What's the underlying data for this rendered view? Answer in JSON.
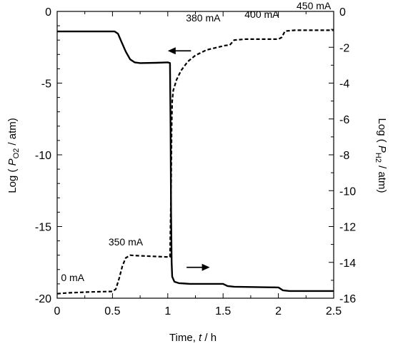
{
  "chart_data": {
    "type": "line",
    "xlabel": "Time, t / h",
    "ylabel_left": "Log ( P O2 / atm)",
    "ylabel_right": "Log ( P H2 / atm)",
    "xlim": [
      0,
      2.5
    ],
    "ylim_left": [
      -20,
      0
    ],
    "ylim_right": [
      -16,
      0
    ],
    "x_ticks": [
      "0",
      "0.5",
      "1",
      "1.5",
      "2",
      "2.5"
    ],
    "y_left_ticks": [
      "0",
      "-5",
      "-10",
      "-15",
      "-20"
    ],
    "y_right_ticks": [
      "0",
      "-2",
      "-4",
      "-6",
      "-8",
      "-10",
      "-12",
      "-14",
      "-16"
    ],
    "grid": false,
    "series": [
      {
        "axis": "left",
        "style": "solid",
        "points": [
          [
            0.0,
            -1.4
          ],
          [
            0.52,
            -1.4
          ],
          [
            0.55,
            -1.55
          ],
          [
            0.58,
            -2.1
          ],
          [
            0.62,
            -2.8
          ],
          [
            0.66,
            -3.35
          ],
          [
            0.7,
            -3.55
          ],
          [
            0.75,
            -3.6
          ],
          [
            0.9,
            -3.58
          ],
          [
            1.0,
            -3.55
          ],
          [
            1.02,
            -3.6
          ],
          [
            1.025,
            -8.0
          ],
          [
            1.03,
            -14.0
          ],
          [
            1.035,
            -17.5
          ],
          [
            1.04,
            -18.5
          ],
          [
            1.06,
            -18.85
          ],
          [
            1.1,
            -18.95
          ],
          [
            1.2,
            -19.0
          ],
          [
            1.5,
            -19.0
          ],
          [
            1.54,
            -19.15
          ],
          [
            1.6,
            -19.2
          ],
          [
            2.0,
            -19.25
          ],
          [
            2.04,
            -19.45
          ],
          [
            2.1,
            -19.5
          ],
          [
            2.5,
            -19.5
          ]
        ]
      },
      {
        "axis": "right",
        "style": "dashed",
        "points": [
          [
            0.0,
            -15.75
          ],
          [
            0.1,
            -15.7
          ],
          [
            0.3,
            -15.65
          ],
          [
            0.5,
            -15.62
          ],
          [
            0.53,
            -15.5
          ],
          [
            0.56,
            -14.9
          ],
          [
            0.59,
            -14.2
          ],
          [
            0.62,
            -13.75
          ],
          [
            0.66,
            -13.6
          ],
          [
            0.7,
            -13.62
          ],
          [
            1.0,
            -13.7
          ],
          [
            1.02,
            -13.7
          ],
          [
            1.03,
            -10.0
          ],
          [
            1.035,
            -6.5
          ],
          [
            1.04,
            -5.0
          ],
          [
            1.05,
            -4.4
          ],
          [
            1.08,
            -3.8
          ],
          [
            1.12,
            -3.3
          ],
          [
            1.18,
            -2.8
          ],
          [
            1.25,
            -2.45
          ],
          [
            1.35,
            -2.15
          ],
          [
            1.45,
            -2.0
          ],
          [
            1.52,
            -1.9
          ],
          [
            1.56,
            -1.88
          ],
          [
            1.6,
            -1.6
          ],
          [
            1.7,
            -1.55
          ],
          [
            2.0,
            -1.55
          ],
          [
            2.03,
            -1.45
          ],
          [
            2.06,
            -1.1
          ],
          [
            2.15,
            -1.05
          ],
          [
            2.5,
            -1.05
          ]
        ]
      }
    ],
    "annotations": [
      {
        "text": "0 mA",
        "x": 0.14,
        "y_right": -15.05
      },
      {
        "text": "350 mA",
        "x": 0.62,
        "y_right": -13.05
      },
      {
        "text": "380 mA",
        "x": 1.32,
        "y_right": -0.55
      },
      {
        "text": "400 mA",
        "x": 1.85,
        "y_right": -0.35
      },
      {
        "text": "450 mA",
        "x": 2.32,
        "y_right": 0.12
      }
    ],
    "arrows": [
      {
        "direction": "left",
        "x_tip": 1.0,
        "x_tail": 1.21,
        "y_left": -2.75
      },
      {
        "direction": "right",
        "x_tip": 1.38,
        "x_tail": 1.17,
        "y_left": -17.85
      }
    ]
  }
}
